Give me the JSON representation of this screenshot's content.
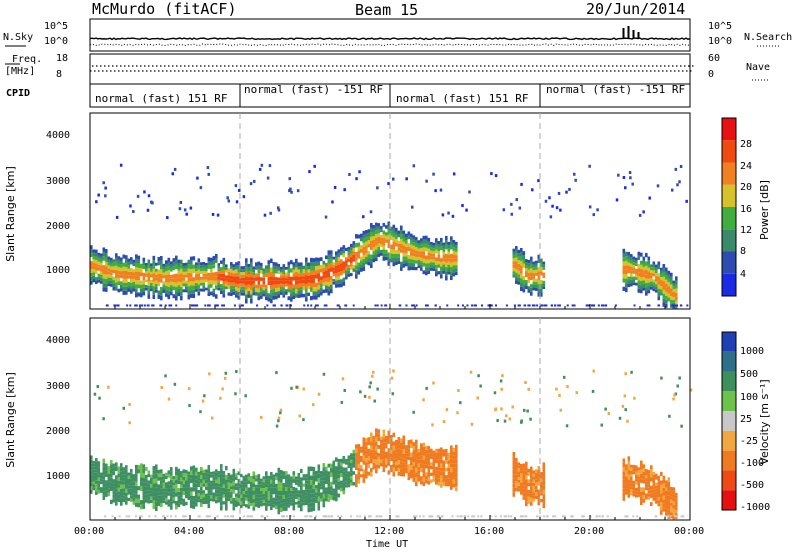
{
  "header": {
    "station": "McMurdo (fitACF)",
    "beam": "Beam 15",
    "date": "20/Jun/2014"
  },
  "left_labels": {
    "nsky": "N.Sky",
    "freq": "Freq.",
    "mhz": "[MHz]",
    "cpid": "CPID"
  },
  "right_labels": {
    "nsearch": "N.Search",
    "nave": "Nave"
  },
  "ticks": {
    "noise_left": [
      "10^5",
      "10^0"
    ],
    "noise_right": [
      "10^5",
      "10^0"
    ],
    "freq": [
      "18",
      "8"
    ],
    "nave": [
      "60",
      "0"
    ]
  },
  "cpid_segments": [
    {
      "label": "normal (fast) 151 RF",
      "start_h": 0,
      "end_h": 6
    },
    {
      "label": "normal (fast) -151 RF",
      "start_h": 6,
      "end_h": 12
    },
    {
      "label": "normal (fast) 151 RF",
      "start_h": 12,
      "end_h": 18
    },
    {
      "label": "normal (fast) -151 RF",
      "start_h": 18,
      "end_h": 24
    }
  ],
  "axes": {
    "ylabel": "Slant Range [km]",
    "xlabel": "Time UT",
    "xticks": [
      "00:00",
      "04:00",
      "08:00",
      "12:00",
      "16:00",
      "20:00",
      "00:00"
    ],
    "yticks": [
      "1000",
      "2000",
      "3000",
      "4000"
    ],
    "xlim_hours": [
      0,
      24
    ],
    "ylim_km": [
      180,
      4500
    ]
  },
  "power_bar": {
    "label": "Power [dB]",
    "ticks": [
      "4",
      "8",
      "12",
      "16",
      "20",
      "24",
      "28"
    ],
    "colors": [
      "#1a2be6",
      "#2d4bb0",
      "#3a8a6a",
      "#3fae3f",
      "#d6c22a",
      "#f08020",
      "#f04a10",
      "#e81010"
    ]
  },
  "velocity_bar": {
    "label": "Velocity [m s⁻¹]",
    "ticks": [
      "1000",
      "500",
      "100",
      "25",
      "-25",
      "-100",
      "-500",
      "-1000"
    ],
    "colors": [
      "#1f3fb4",
      "#2e6f8a",
      "#3d8f5c",
      "#6cc24a",
      "#c8c8c8",
      "#f2a640",
      "#f07a20",
      "#ef4a12",
      "#e61010"
    ]
  },
  "chart_data": {
    "type": "heatmap",
    "title": "McMurdo (fitACF) Beam 15 20/Jun/2014",
    "xlabel": "Time UT",
    "ylabel": "Slant Range [km]",
    "xlim": [
      0,
      24
    ],
    "ylim": [
      180,
      4500
    ],
    "echo_band_center_km": [
      [
        0,
        1150
      ],
      [
        1,
        950
      ],
      [
        2,
        900
      ],
      [
        3,
        850
      ],
      [
        4,
        880
      ],
      [
        5,
        900
      ],
      [
        6,
        800
      ],
      [
        7,
        800
      ],
      [
        8,
        800
      ],
      [
        9,
        850
      ],
      [
        10,
        1100
      ],
      [
        11,
        1500
      ],
      [
        11.5,
        1700
      ],
      [
        12,
        1600
      ],
      [
        12.5,
        1500
      ],
      [
        13,
        1400
      ],
      [
        14,
        1300
      ],
      [
        14.5,
        1300
      ],
      [
        17,
        1150
      ],
      [
        17.5,
        900
      ],
      [
        21.5,
        1050
      ],
      [
        22.5,
        900
      ],
      [
        23.5,
        400
      ]
    ],
    "power_peak_db": 30,
    "velocity_dominant_ms": {
      "00:00-10:00": 50,
      "10:30-14:30": -100,
      "17:00-18:00": -100
    }
  }
}
